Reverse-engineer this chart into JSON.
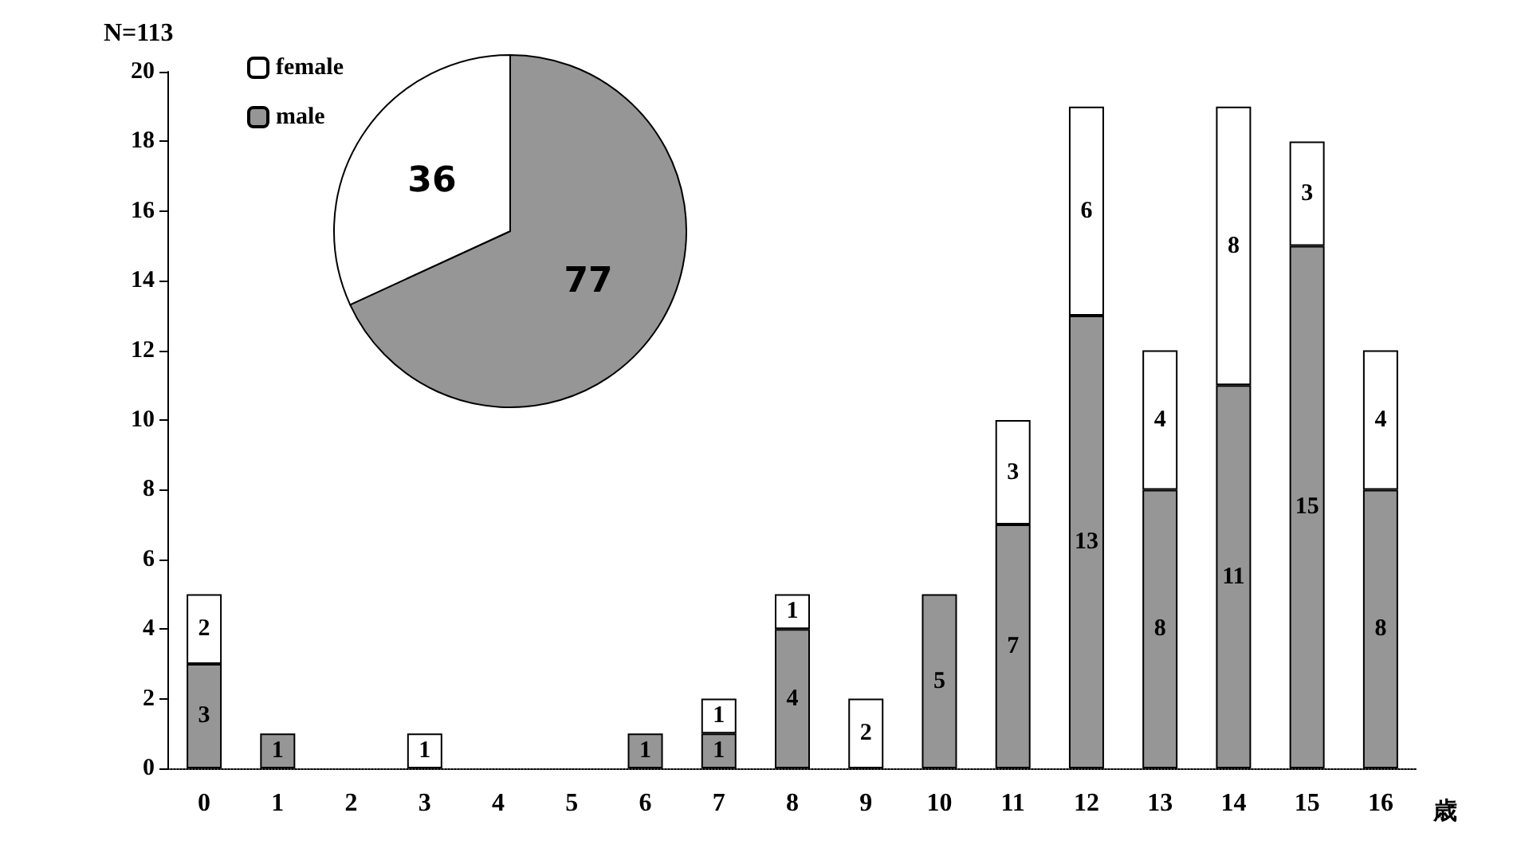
{
  "chart_data": [
    {
      "type": "bar",
      "title": "N=113",
      "xlabel": "歳",
      "stacked": true,
      "categories": [
        "0",
        "1",
        "2",
        "3",
        "4",
        "5",
        "6",
        "7",
        "8",
        "9",
        "10",
        "11",
        "12",
        "13",
        "14",
        "15",
        "16"
      ],
      "series": [
        {
          "name": "male",
          "color": "#969696",
          "values": [
            3,
            1,
            0,
            0,
            0,
            0,
            1,
            1,
            4,
            0,
            5,
            7,
            13,
            8,
            11,
            15,
            8
          ],
          "value_labels": [
            "3",
            "1",
            null,
            null,
            null,
            null,
            "1",
            "1",
            "4",
            null,
            "5",
            "7",
            "13",
            "8",
            "11",
            "15",
            "8"
          ]
        },
        {
          "name": "female",
          "color": "#ffffff",
          "values": [
            2,
            0,
            0,
            1,
            0,
            0,
            0,
            1,
            1,
            2,
            0,
            3,
            6,
            4,
            8,
            3,
            4
          ],
          "value_labels": [
            "2",
            null,
            null,
            "1",
            null,
            null,
            null,
            "1",
            "1",
            "2",
            null,
            "3",
            "6",
            "4",
            "8",
            "3",
            "4"
          ]
        }
      ],
      "ylim": [
        0,
        20
      ],
      "yticks": [
        0,
        2,
        4,
        6,
        8,
        10,
        12,
        14,
        16,
        18,
        20
      ],
      "grid": false,
      "legend": "top left"
    },
    {
      "type": "pie",
      "categories": [
        null,
        null
      ],
      "values": [
        77,
        36
      ],
      "colors": [
        "#969696",
        "#ffffff"
      ],
      "data_labels": true
    }
  ]
}
